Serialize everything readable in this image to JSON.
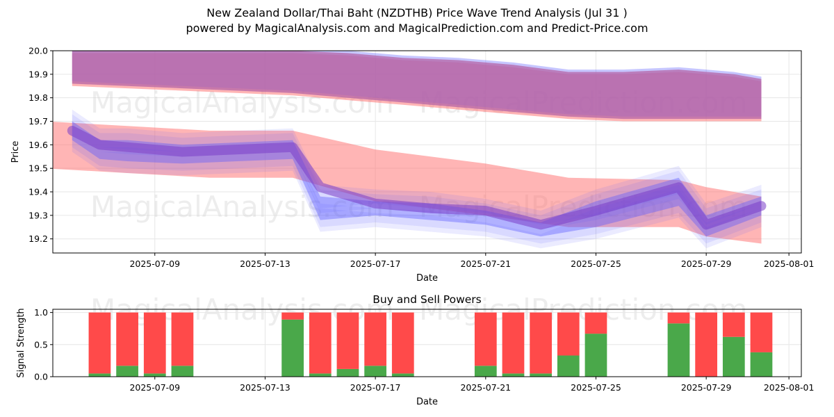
{
  "title": "New Zealand Dollar/Thai Baht (NZDTHB) Price Wave Trend Analysis (Jul 31 )",
  "subtitle": "powered by MagicalAnalysis.com and MagicalPrediction.com and Predict-Price.com",
  "watermarks": [
    "MagicalAnalysis.com",
    "MagicalPrediction.com"
  ],
  "chart_data": [
    {
      "type": "area",
      "xlabel": "Date",
      "ylabel": "Price",
      "xlim": [
        "2025-07-05",
        "2025-08-01"
      ],
      "ylim": [
        19.14,
        20.0
      ],
      "x_ticks": [
        "2025-07-09",
        "2025-07-13",
        "2025-07-17",
        "2025-07-21",
        "2025-07-25",
        "2025-07-29",
        "2025-08-01"
      ],
      "y_ticks": [
        19.2,
        19.3,
        19.4,
        19.5,
        19.6,
        19.7,
        19.8,
        19.9,
        20.0
      ],
      "grid": true,
      "colors": {
        "red_band": "#ff6b6b",
        "blue_band": "#5b5bff",
        "overlap": "#b565a7",
        "purple_line": "#7a3ec8"
      },
      "upper_band": {
        "x": [
          "2025-07-06",
          "2025-07-08",
          "2025-07-10",
          "2025-07-12",
          "2025-07-14",
          "2025-07-16",
          "2025-07-18",
          "2025-07-20",
          "2025-07-22",
          "2025-07-24",
          "2025-07-26",
          "2025-07-28",
          "2025-07-30",
          "2025-07-31"
        ],
        "upper": [
          20.0,
          20.0,
          20.0,
          20.0,
          20.0,
          19.99,
          19.97,
          19.96,
          19.94,
          19.91,
          19.91,
          19.92,
          19.9,
          19.88
        ],
        "lower": [
          19.86,
          19.85,
          19.84,
          19.83,
          19.82,
          19.8,
          19.78,
          19.76,
          19.74,
          19.72,
          19.71,
          19.71,
          19.71,
          19.71
        ]
      },
      "lower_red_band": {
        "x": [
          "2025-07-05",
          "2025-07-08",
          "2025-07-11",
          "2025-07-14",
          "2025-07-17",
          "2025-07-21",
          "2025-07-24",
          "2025-07-28",
          "2025-07-29",
          "2025-07-31"
        ],
        "upper": [
          19.7,
          19.68,
          19.66,
          19.66,
          19.58,
          19.52,
          19.46,
          19.45,
          19.42,
          19.38
        ],
        "lower": [
          19.5,
          19.48,
          19.46,
          19.46,
          19.36,
          19.3,
          19.25,
          19.25,
          19.21,
          19.18
        ]
      },
      "blue_band": {
        "x": [
          "2025-07-06",
          "2025-07-07",
          "2025-07-08",
          "2025-07-10",
          "2025-07-12",
          "2025-07-14",
          "2025-07-15",
          "2025-07-17",
          "2025-07-19",
          "2025-07-21",
          "2025-07-23",
          "2025-07-25",
          "2025-07-28",
          "2025-07-29",
          "2025-07-31"
        ],
        "upper": [
          19.7,
          19.62,
          19.62,
          19.6,
          19.61,
          19.62,
          19.38,
          19.36,
          19.35,
          19.32,
          19.27,
          19.36,
          19.46,
          19.3,
          19.38
        ],
        "lower": [
          19.62,
          19.54,
          19.53,
          19.52,
          19.53,
          19.54,
          19.28,
          19.3,
          19.28,
          19.26,
          19.21,
          19.25,
          19.34,
          19.21,
          19.3
        ]
      },
      "purple_line": {
        "x": [
          "2025-07-06",
          "2025-07-07",
          "2025-07-08",
          "2025-07-10",
          "2025-07-12",
          "2025-07-14",
          "2025-07-15",
          "2025-07-17",
          "2025-07-19",
          "2025-07-21",
          "2025-07-23",
          "2025-07-25",
          "2025-07-28",
          "2025-07-29",
          "2025-07-30",
          "2025-07-31"
        ],
        "y": [
          19.66,
          19.6,
          19.59,
          19.57,
          19.58,
          19.59,
          19.42,
          19.35,
          19.33,
          19.32,
          19.26,
          19.32,
          19.42,
          19.26,
          19.3,
          19.34
        ]
      }
    },
    {
      "type": "bar",
      "title": "Buy and Sell Powers",
      "xlabel": "Date",
      "ylabel": "Signal Strength",
      "xlim": [
        "2025-07-05",
        "2025-08-01"
      ],
      "ylim": [
        0,
        1.05
      ],
      "x_ticks": [
        "2025-07-09",
        "2025-07-13",
        "2025-07-17",
        "2025-07-21",
        "2025-07-25",
        "2025-07-29",
        "2025-08-01"
      ],
      "y_ticks": [
        0.0,
        0.5,
        1.0
      ],
      "colors": {
        "buy": "#4aa84a",
        "sell": "#ff4a4a"
      },
      "x": [
        "2025-07-07",
        "2025-07-08",
        "2025-07-09",
        "2025-07-10",
        "2025-07-14",
        "2025-07-15",
        "2025-07-16",
        "2025-07-17",
        "2025-07-18",
        "2025-07-21",
        "2025-07-22",
        "2025-07-23",
        "2025-07-24",
        "2025-07-25",
        "2025-07-28",
        "2025-07-29",
        "2025-07-30",
        "2025-07-31"
      ],
      "series": [
        {
          "name": "buy",
          "values": [
            0.05,
            0.17,
            0.05,
            0.17,
            0.89,
            0.05,
            0.12,
            0.17,
            0.05,
            0.17,
            0.05,
            0.05,
            0.33,
            0.67,
            0.83,
            0.0,
            0.62,
            0.38
          ]
        },
        {
          "name": "sell",
          "values": [
            0.95,
            0.83,
            0.95,
            0.83,
            0.11,
            0.95,
            0.88,
            0.83,
            0.95,
            0.83,
            0.95,
            0.95,
            0.67,
            0.33,
            0.17,
            1.0,
            0.38,
            0.62
          ]
        }
      ]
    }
  ]
}
